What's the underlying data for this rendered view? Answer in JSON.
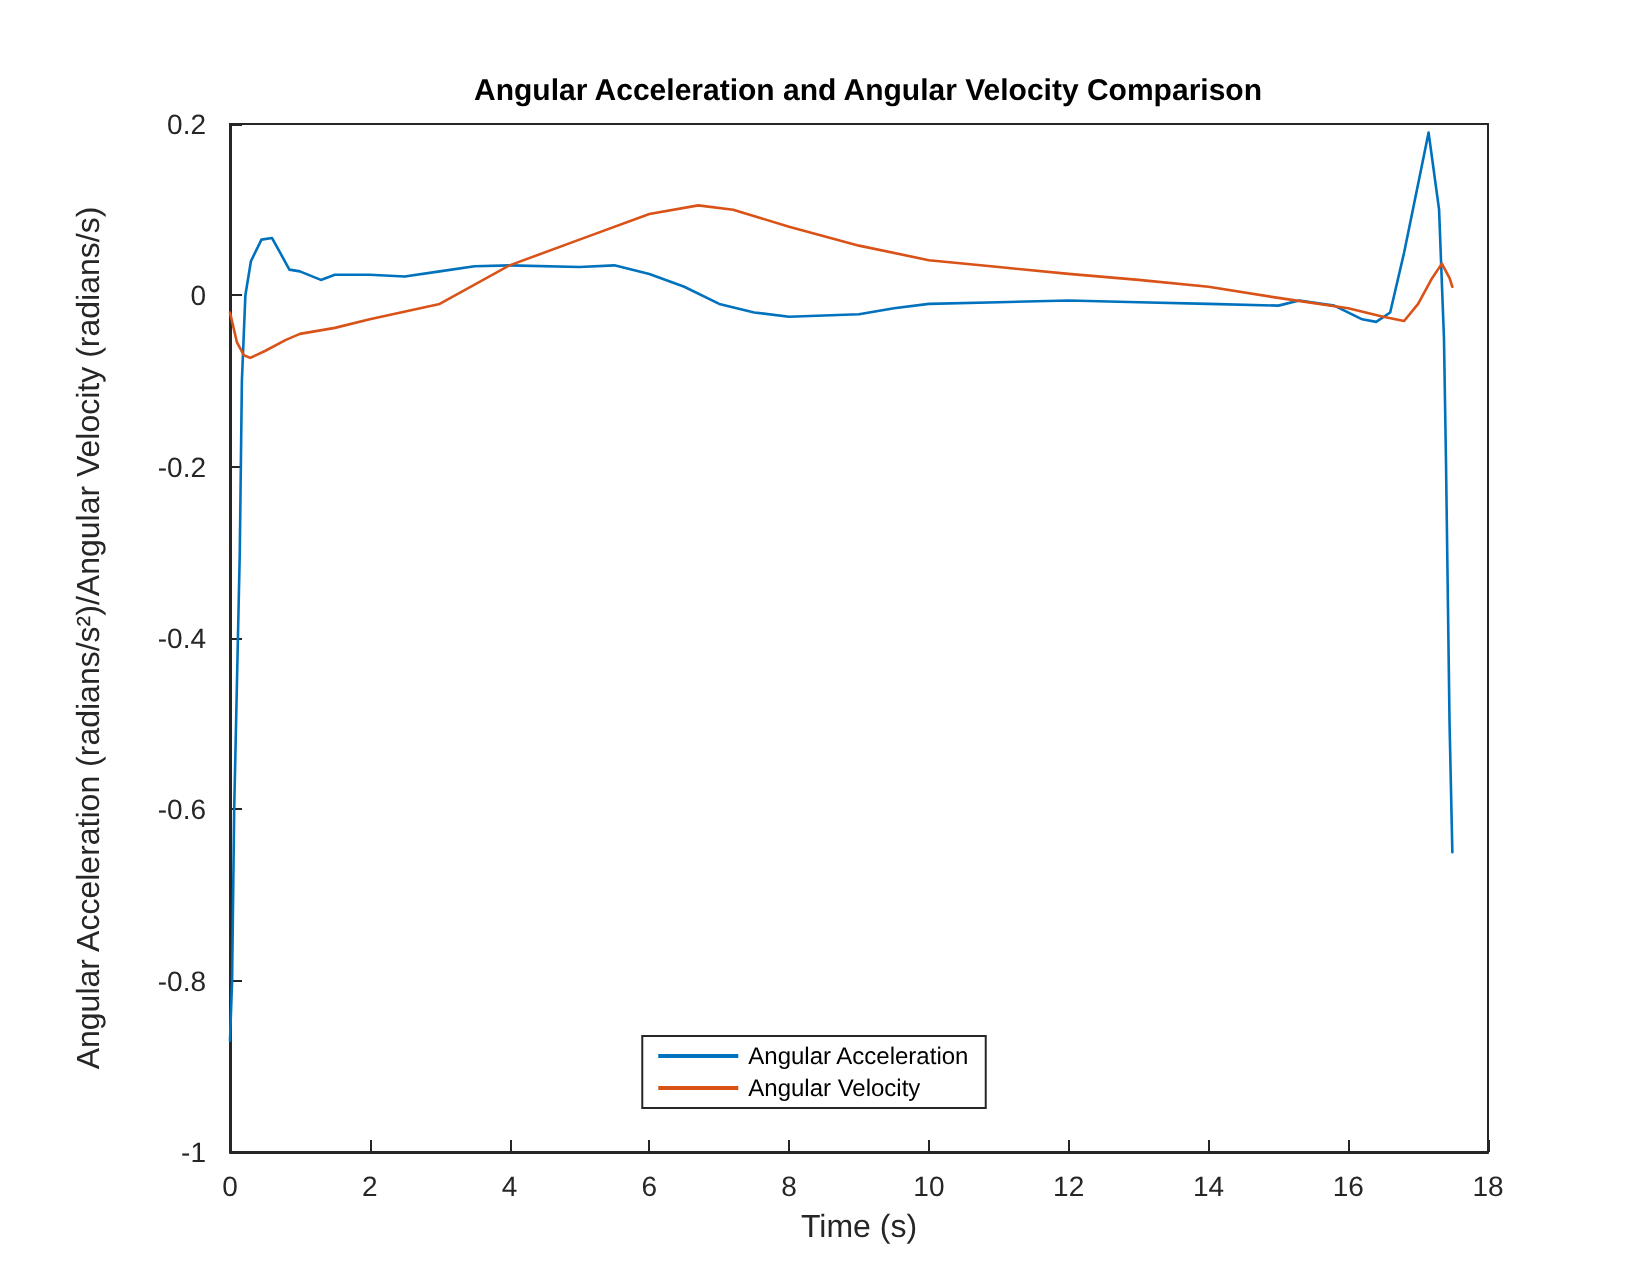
{
  "chart_data": {
    "type": "line",
    "title": "Angular Acceleration and Angular Velocity Comparison",
    "xlabel": "Time (s)",
    "ylabel": "Angular Acceleration (radians/s²)/Angular Velocity (radians/s)",
    "xlim": [
      0,
      18
    ],
    "xticks": [
      0,
      2,
      4,
      6,
      8,
      10,
      12,
      14,
      16,
      18
    ],
    "ylim": [
      -1,
      0.2
    ],
    "yticks": [
      -1,
      -0.8,
      -0.6,
      -0.4,
      -0.2,
      0,
      0.2
    ],
    "grid": false,
    "legend": "bottom",
    "marker": "none",
    "line_style": "solid",
    "series": [
      {
        "name": "Angular Acceleration",
        "color": "#0072bd",
        "x": [
          0,
          0.03,
          0.06,
          0.1,
          0.14,
          0.17,
          0.22,
          0.3,
          0.45,
          0.6,
          0.75,
          0.85,
          1.0,
          1.3,
          1.5,
          2,
          2.5,
          3,
          3.5,
          4,
          5,
          5.5,
          6,
          6.5,
          7,
          7.5,
          8,
          9,
          9.5,
          10,
          11,
          12,
          13,
          14,
          15,
          15.3,
          15.8,
          16.2,
          16.4,
          16.6,
          16.8,
          17.0,
          17.15,
          17.2,
          17.3,
          17.37,
          17.4,
          17.45,
          17.49
        ],
        "values": [
          -0.87,
          -0.8,
          -0.6,
          -0.45,
          -0.3,
          -0.1,
          0.0,
          0.04,
          0.065,
          0.067,
          0.045,
          0.03,
          0.028,
          0.018,
          0.024,
          0.024,
          0.022,
          0.028,
          0.034,
          0.035,
          0.033,
          0.035,
          0.025,
          0.01,
          -0.01,
          -0.02,
          -0.025,
          -0.022,
          -0.015,
          -0.01,
          -0.008,
          -0.006,
          -0.008,
          -0.01,
          -0.012,
          -0.006,
          -0.012,
          -0.028,
          -0.031,
          -0.02,
          0.05,
          0.13,
          0.19,
          0.16,
          0.1,
          -0.05,
          -0.2,
          -0.5,
          -0.65
        ]
      },
      {
        "name": "Angular Velocity",
        "color": "#d95319",
        "x": [
          0,
          0.1,
          0.2,
          0.29,
          0.5,
          0.8,
          1,
          1.5,
          2,
          3,
          4,
          5,
          6,
          6.7,
          7.2,
          8,
          9,
          10,
          11,
          12,
          13,
          14,
          15,
          16,
          16.5,
          16.8,
          17.0,
          17.2,
          17.34,
          17.45,
          17.49
        ],
        "values": [
          -0.02,
          -0.055,
          -0.07,
          -0.073,
          -0.065,
          -0.052,
          -0.045,
          -0.038,
          -0.028,
          -0.01,
          0.035,
          0.065,
          0.095,
          0.105,
          0.1,
          0.08,
          0.058,
          0.041,
          0.033,
          0.025,
          0.018,
          0.01,
          -0.003,
          -0.015,
          -0.025,
          -0.03,
          -0.01,
          0.02,
          0.037,
          0.02,
          0.01
        ]
      }
    ]
  }
}
